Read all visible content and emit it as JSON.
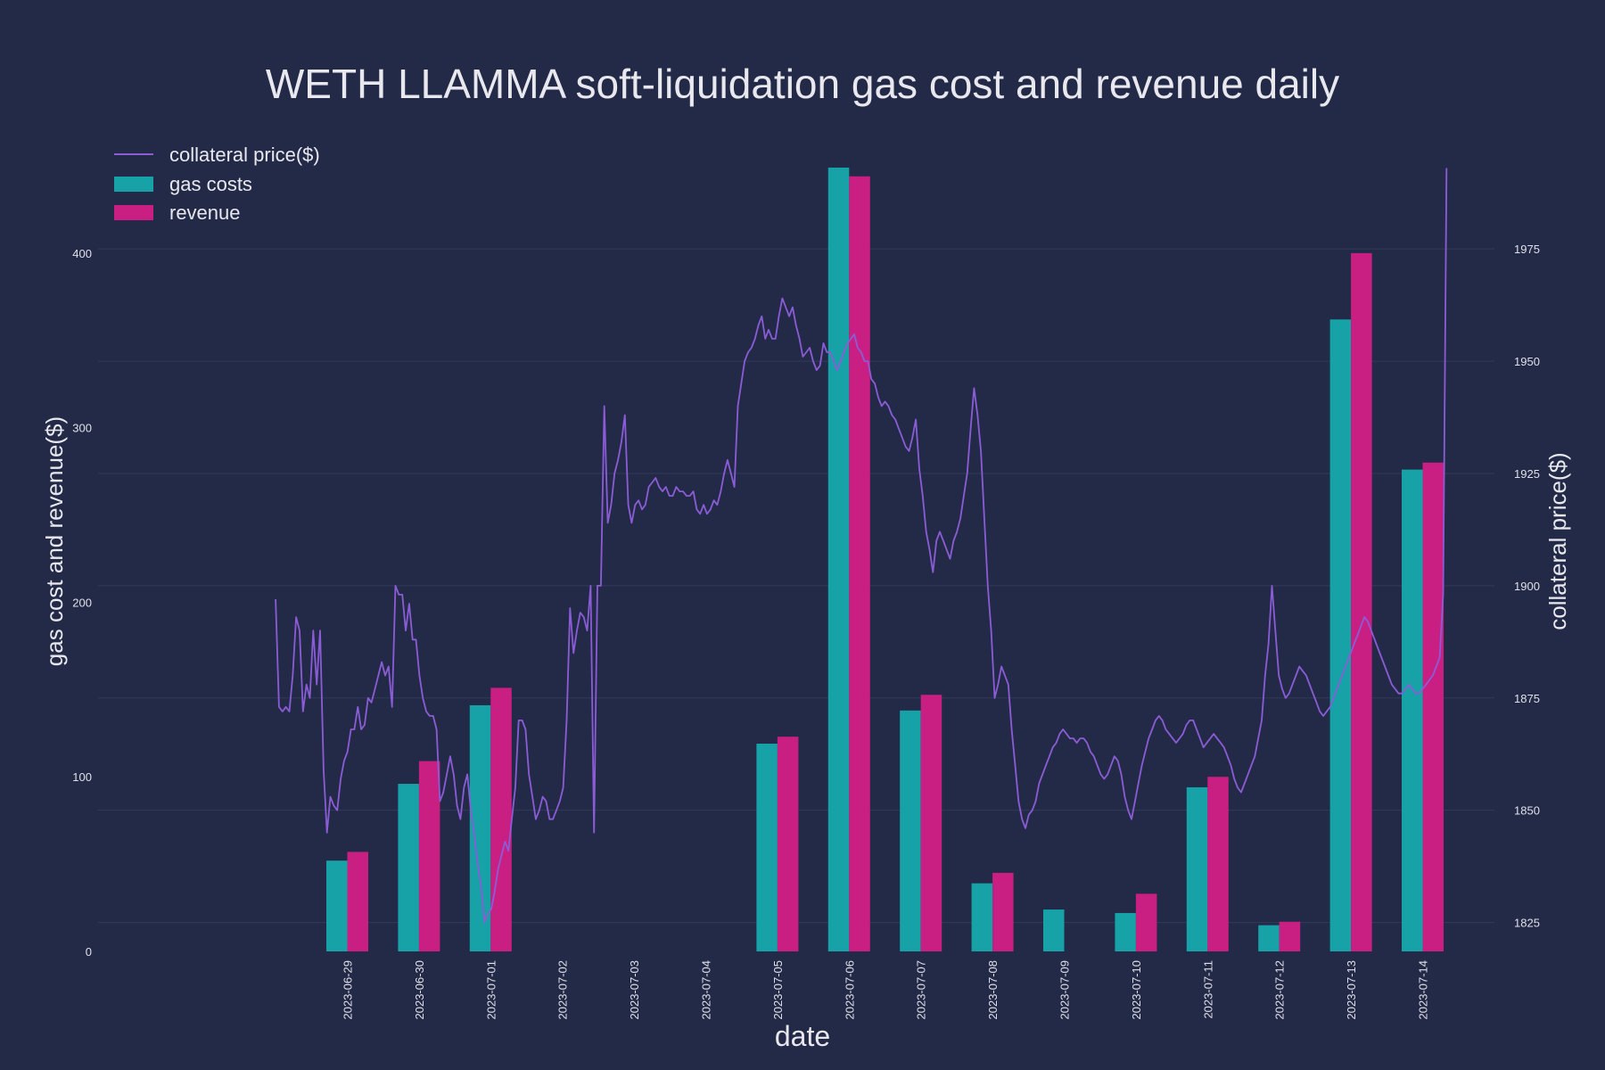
{
  "chart_data": {
    "type": "bar",
    "title": "WETH LLAMMA soft-liquidation gas cost and revenue daily",
    "xlabel": "date",
    "ylabel": "gas cost and revenue($)",
    "y2label": "collateral price($)",
    "categories": [
      "2023-06-29",
      "2023-06-30",
      "2023-07-01",
      "2023-07-02",
      "2023-07-03",
      "2023-07-04",
      "2023-07-05",
      "2023-07-06",
      "2023-07-07",
      "2023-07-08",
      "2023-07-09",
      "2023-07-10",
      "2023-07-11",
      "2023-07-12",
      "2023-07-13",
      "2023-07-14"
    ],
    "series": [
      {
        "name": "gas costs",
        "type": "bar",
        "color": "#17a2a8",
        "values": [
          52,
          96,
          141,
          0,
          0,
          0,
          119,
          449,
          138,
          39,
          24,
          22,
          94,
          15,
          362,
          276
        ]
      },
      {
        "name": "revenue",
        "type": "bar",
        "color": "#c91f82",
        "values": [
          57,
          109,
          151,
          0,
          0,
          0,
          123,
          444,
          147,
          45,
          0,
          33,
          100,
          17,
          400,
          280
        ]
      }
    ],
    "line": {
      "name": "collateral price($)",
      "color": "#8b5cd6",
      "axis": "right",
      "x_start": "2023-06-28T00:00",
      "x_end": "2023-07-14T08:00",
      "values": [
        1897,
        1873,
        1872,
        1873,
        1872,
        1880,
        1893,
        1890,
        1872,
        1878,
        1875,
        1890,
        1878,
        1890,
        1859,
        1845,
        1853,
        1851,
        1850,
        1857,
        1861,
        1863,
        1868,
        1868,
        1873,
        1868,
        1869,
        1875,
        1874,
        1877,
        1880,
        1883,
        1880,
        1882,
        1873,
        1900,
        1898,
        1898,
        1890,
        1896,
        1888,
        1888,
        1880,
        1875,
        1872,
        1871,
        1871,
        1868,
        1852,
        1854,
        1858,
        1862,
        1858,
        1851,
        1848,
        1855,
        1858,
        1850,
        1845,
        1838,
        1833,
        1825,
        1827,
        1828,
        1832,
        1837,
        1840,
        1843,
        1841,
        1848,
        1855,
        1870,
        1870,
        1868,
        1858,
        1853,
        1848,
        1850,
        1853,
        1852,
        1848,
        1848,
        1850,
        1852,
        1855,
        1870,
        1895,
        1885,
        1890,
        1894,
        1893,
        1890,
        1900,
        1845,
        1900,
        1900,
        1940,
        1914,
        1918,
        1925,
        1928,
        1932,
        1938,
        1918,
        1914,
        1918,
        1919,
        1917,
        1918,
        1922,
        1923,
        1924,
        1922,
        1921,
        1922,
        1920,
        1920,
        1922,
        1921,
        1921,
        1920,
        1920,
        1921,
        1917,
        1916,
        1918,
        1916,
        1917,
        1919,
        1918,
        1921,
        1925,
        1928,
        1925,
        1922,
        1940,
        1945,
        1950,
        1952,
        1953,
        1955,
        1958,
        1960,
        1955,
        1957,
        1955,
        1955,
        1960,
        1964,
        1962,
        1960,
        1962,
        1958,
        1955,
        1951,
        1952,
        1953,
        1950,
        1948,
        1949,
        1954,
        1952,
        1952,
        1950,
        1948,
        1950,
        1952,
        1954,
        1955,
        1956,
        1953,
        1952,
        1950,
        1950,
        1946,
        1945,
        1942,
        1940,
        1941,
        1940,
        1938,
        1937,
        1935,
        1933,
        1931,
        1930,
        1933,
        1937,
        1926,
        1920,
        1912,
        1908,
        1903,
        1910,
        1912,
        1910,
        1908,
        1906,
        1910,
        1912,
        1915,
        1920,
        1925,
        1935,
        1944,
        1938,
        1930,
        1915,
        1900,
        1890,
        1875,
        1878,
        1882,
        1880,
        1878,
        1868,
        1860,
        1852,
        1848,
        1846,
        1849,
        1850,
        1852,
        1856,
        1858,
        1860,
        1862,
        1864,
        1865,
        1867,
        1868,
        1867,
        1866,
        1866,
        1865,
        1866,
        1866,
        1865,
        1863,
        1862,
        1860,
        1858,
        1857,
        1858,
        1860,
        1862,
        1861,
        1858,
        1853,
        1850,
        1848,
        1852,
        1856,
        1860,
        1863,
        1866,
        1868,
        1870,
        1871,
        1870,
        1868,
        1867,
        1866,
        1865,
        1866,
        1867,
        1869,
        1870,
        1870,
        1868,
        1866,
        1864,
        1865,
        1866,
        1867,
        1866,
        1865,
        1864,
        1862,
        1860,
        1857,
        1855,
        1854,
        1856,
        1858,
        1860,
        1862,
        1866,
        1870,
        1880,
        1887,
        1900,
        1890,
        1880,
        1877,
        1875,
        1876,
        1878,
        1880,
        1882,
        1881,
        1880,
        1878,
        1876,
        1874,
        1872,
        1871,
        1872,
        1873,
        1875,
        1877,
        1879,
        1881,
        1883,
        1885,
        1887,
        1889,
        1891,
        1893,
        1892,
        1890,
        1888,
        1886,
        1884,
        1882,
        1880,
        1878,
        1877,
        1876,
        1876,
        1877,
        1878,
        1877,
        1876,
        1876,
        1877,
        1878,
        1879,
        1880,
        1882,
        1884,
        1898,
        1993
      ]
    },
    "ylim": [
      0,
      450
    ],
    "yticks": [
      0,
      100,
      200,
      300,
      400
    ],
    "y2lim": [
      1818.56,
      1993.5
    ],
    "y2ticks": [
      1825,
      1850,
      1875,
      1900,
      1925,
      1950,
      1975
    ],
    "grid": true,
    "legend": {
      "placement": "top-left",
      "entries": [
        {
          "label": "collateral price($)",
          "kind": "line",
          "color": "#8b5cd6"
        },
        {
          "label": "gas costs",
          "kind": "bar",
          "color": "#17a2a8"
        },
        {
          "label": "revenue",
          "kind": "bar",
          "color": "#c91f82"
        }
      ]
    },
    "colors": {
      "background": "#232a48",
      "grid": "#323a5a",
      "text": "#e8e8ee"
    }
  }
}
